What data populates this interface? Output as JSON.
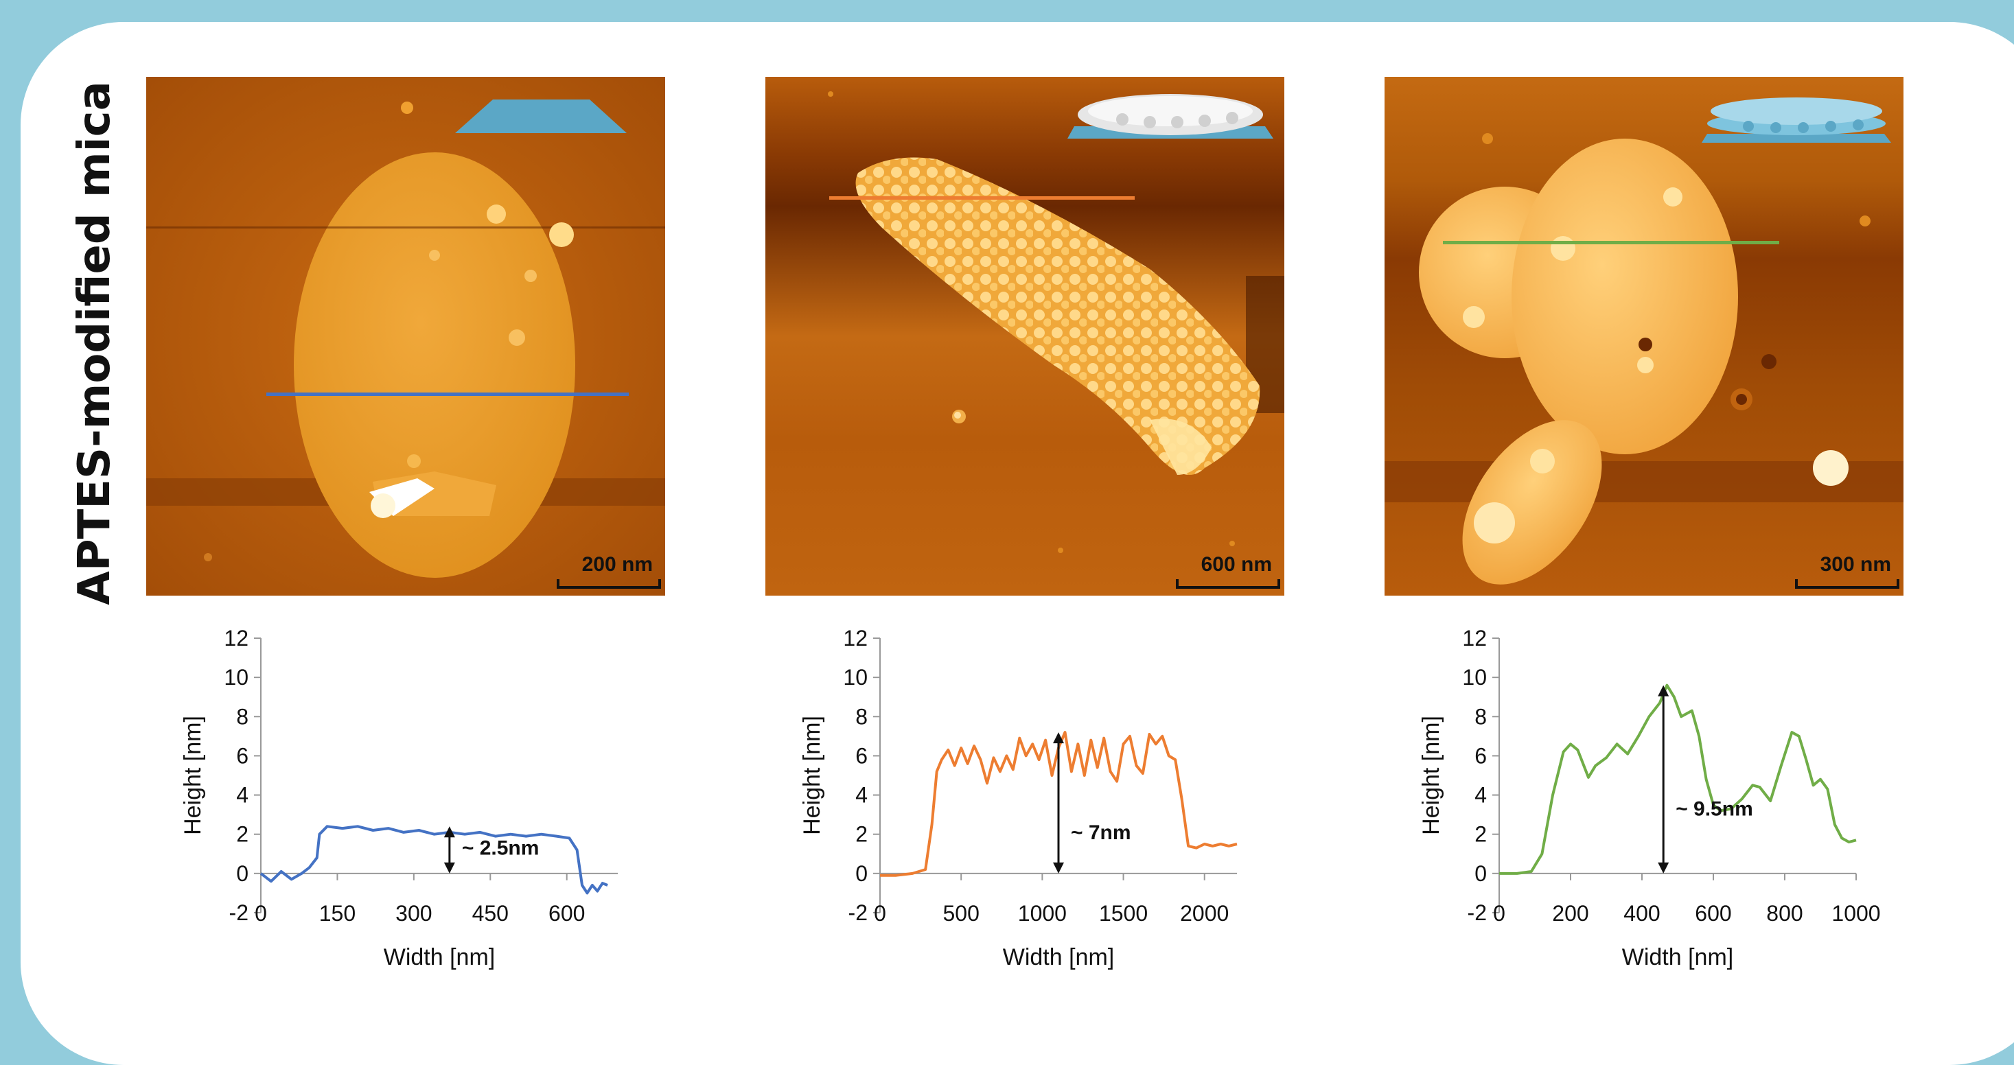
{
  "side_title": "APTES-modified mica",
  "colors": {
    "background": "#92ccdc",
    "card": "#ffffff",
    "series": [
      "#4472c4",
      "#ed7d31",
      "#70ad47"
    ]
  },
  "images": [
    {
      "scale_label": "200 nm",
      "profile_line_color": "#4472c4",
      "inset": "single-flat-layer-icon"
    },
    {
      "scale_label": "600 nm",
      "profile_line_color": "#ed7d31",
      "inset": "particle-layer-icon"
    },
    {
      "scale_label": "300 nm",
      "profile_line_color": "#70ad47",
      "inset": "double-particle-layer-icon"
    }
  ],
  "chart_data": [
    {
      "type": "line",
      "xlabel": "Width [nm]",
      "ylabel": "Height [nm]",
      "xlim": [
        0,
        700
      ],
      "xticks": [
        0,
        150,
        300,
        450,
        600
      ],
      "ylim": [
        -2,
        12
      ],
      "yticks": [
        -2,
        0,
        2,
        4,
        6,
        8,
        10,
        12
      ],
      "grid": false,
      "series": [
        {
          "color": "#4472c4",
          "x": [
            0,
            20,
            40,
            60,
            80,
            95,
            110,
            115,
            130,
            160,
            190,
            220,
            250,
            280,
            310,
            340,
            370,
            400,
            430,
            460,
            490,
            520,
            550,
            580,
            605,
            620,
            630,
            640,
            650,
            660,
            670,
            680
          ],
          "y": [
            0,
            -0.4,
            0.1,
            -0.3,
            0,
            0.3,
            0.8,
            2.0,
            2.4,
            2.3,
            2.4,
            2.2,
            2.3,
            2.1,
            2.2,
            2.0,
            2.1,
            2.0,
            2.1,
            1.9,
            2.0,
            1.9,
            2.0,
            1.9,
            1.8,
            1.2,
            -0.6,
            -1.0,
            -0.6,
            -0.9,
            -0.5,
            -0.6
          ]
        }
      ],
      "annotation": {
        "text": "~ 2.5nm",
        "x": 370,
        "y_from": 0,
        "y_to": 2.4
      }
    },
    {
      "type": "line",
      "xlabel": "Width [nm]",
      "ylabel": "Height [nm]",
      "xlim": [
        0,
        2200
      ],
      "xticks": [
        0,
        500,
        1000,
        1500,
        2000
      ],
      "ylim": [
        -2,
        12
      ],
      "yticks": [
        -2,
        0,
        2,
        4,
        6,
        8,
        10,
        12
      ],
      "grid": false,
      "series": [
        {
          "color": "#ed7d31",
          "x": [
            0,
            100,
            200,
            280,
            320,
            350,
            380,
            420,
            460,
            500,
            540,
            580,
            620,
            660,
            700,
            740,
            780,
            820,
            860,
            900,
            940,
            980,
            1020,
            1060,
            1100,
            1140,
            1180,
            1220,
            1260,
            1300,
            1340,
            1380,
            1420,
            1460,
            1500,
            1540,
            1580,
            1620,
            1660,
            1700,
            1740,
            1780,
            1820,
            1860,
            1900,
            1950,
            2000,
            2050,
            2100,
            2150,
            2200
          ],
          "y": [
            -0.1,
            -0.1,
            0,
            0.2,
            2.5,
            5.2,
            5.8,
            6.3,
            5.5,
            6.4,
            5.6,
            6.5,
            5.8,
            4.6,
            5.9,
            5.2,
            6.0,
            5.3,
            6.9,
            6.0,
            6.6,
            5.8,
            6.8,
            5.0,
            6.4,
            7.2,
            5.2,
            6.6,
            5.0,
            6.8,
            5.4,
            6.9,
            5.2,
            4.7,
            6.6,
            7.0,
            5.5,
            5.1,
            7.1,
            6.6,
            7.0,
            6.0,
            5.8,
            3.8,
            1.4,
            1.3,
            1.5,
            1.4,
            1.5,
            1.4,
            1.5
          ]
        }
      ],
      "annotation": {
        "text": "~ 7nm",
        "x": 1100,
        "y_from": 0,
        "y_to": 7.2
      }
    },
    {
      "type": "line",
      "xlabel": "Width [nm]",
      "ylabel": "Height [nm]",
      "xlim": [
        0,
        1000
      ],
      "xticks": [
        0,
        200,
        400,
        600,
        800,
        1000
      ],
      "ylim": [
        -2,
        12
      ],
      "yticks": [
        -2,
        0,
        2,
        4,
        6,
        8,
        10,
        12
      ],
      "grid": false,
      "series": [
        {
          "color": "#70ad47",
          "x": [
            0,
            50,
            90,
            120,
            150,
            180,
            200,
            220,
            250,
            270,
            300,
            330,
            360,
            390,
            420,
            450,
            470,
            490,
            510,
            540,
            560,
            580,
            600,
            620,
            650,
            680,
            710,
            730,
            760,
            790,
            820,
            840,
            860,
            880,
            900,
            920,
            940,
            960,
            980,
            1000
          ],
          "y": [
            0,
            0,
            0.1,
            1.0,
            4.0,
            6.2,
            6.6,
            6.3,
            4.9,
            5.5,
            5.9,
            6.6,
            6.1,
            7.0,
            8.0,
            8.7,
            9.6,
            9.0,
            8.0,
            8.3,
            7.0,
            4.8,
            3.5,
            3.2,
            3.3,
            3.8,
            4.5,
            4.4,
            3.7,
            5.5,
            7.2,
            7.0,
            5.8,
            4.5,
            4.8,
            4.3,
            2.5,
            1.8,
            1.6,
            1.7
          ]
        }
      ],
      "annotation": {
        "text": "~ 9.5nm",
        "x": 460,
        "y_from": 0,
        "y_to": 9.6
      }
    }
  ]
}
